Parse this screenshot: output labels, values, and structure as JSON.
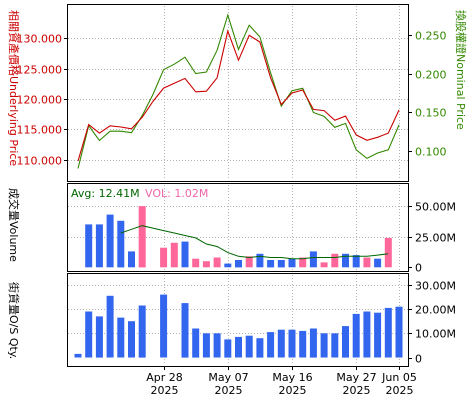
{
  "colors": {
    "underlying": "#cc0000",
    "nominal": "#338800",
    "volume_up": "#3366ee",
    "volume_down": "#ff6699",
    "avg_line": "#006600",
    "vol_label": "#ee66aa",
    "sq_bar": "#3366ee",
    "axis_text": "#000000"
  },
  "panels": {
    "price": {
      "left_label": "相關資產價格Underlying Price",
      "right_label": "換股權證Nominal Price"
    },
    "volume": {
      "left_label": "成交量Volume",
      "avg_text": "Avg: 12.41M",
      "vol_text": "VOL: 1.02M"
    },
    "sq": {
      "left_label": "街貨量O/S Qty."
    }
  },
  "chart_data": [
    {
      "type": "line",
      "panel": "price",
      "yaxis_left": {
        "ticks": [
          110,
          115,
          120,
          125,
          130
        ],
        "tick_labels": [
          "110.000",
          "115.000",
          "120.000",
          "125.000",
          "130.000"
        ],
        "ylim": [
          106.5,
          135.5
        ]
      },
      "yaxis_right": {
        "ticks": [
          0.1,
          0.15,
          0.2,
          0.25
        ],
        "tick_labels": [
          "0.100",
          "0.150",
          "0.200",
          "0.250"
        ],
        "ylim": [
          0.062,
          0.288
        ]
      },
      "x_ticks": [
        "Apr 28",
        "May 07",
        "May 16",
        "May 27",
        "Jun 05"
      ],
      "x_tick_years": [
        "2025",
        "2025",
        "2025",
        "2025",
        "2025"
      ],
      "series": [
        {
          "axis": "left",
          "values": [
            109.8,
            115.8,
            114.4,
            115.6,
            115.4,
            115.1,
            117.0,
            119.6,
            121.8,
            122.6,
            123.4,
            121.2,
            121.3,
            123.5,
            131.2,
            126.4,
            130.5,
            129.4,
            123.5,
            119.1,
            121.0,
            121.5,
            118.3,
            118.1,
            116.5,
            117.2,
            114.1,
            113.2,
            113.7,
            114.4,
            118.2
          ]
        },
        {
          "axis": "right",
          "values": [
            0.078,
            0.133,
            0.114,
            0.126,
            0.126,
            0.124,
            0.146,
            0.173,
            0.205,
            0.212,
            0.221,
            0.2,
            0.202,
            0.23,
            0.275,
            0.231,
            0.262,
            0.247,
            0.201,
            0.158,
            0.178,
            0.181,
            0.15,
            0.145,
            0.131,
            0.136,
            0.102,
            0.091,
            0.098,
            0.102,
            0.134
          ]
        }
      ]
    },
    {
      "type": "bar",
      "panel": "volume",
      "yaxis_right": {
        "ticks": [
          0,
          25,
          50
        ],
        "tick_labels": [
          "0",
          "25.00M",
          "50.00M"
        ],
        "ylim": [
          -3,
          68
        ]
      },
      "series": [
        {
          "name": "volume",
          "values": [
            0,
            35,
            35,
            43,
            38,
            13,
            50,
            0,
            16,
            20,
            21,
            7,
            5,
            8,
            3,
            6,
            9,
            11,
            6,
            6,
            7,
            8,
            13,
            4,
            11,
            11,
            10,
            8,
            7,
            24
          ],
          "direction": [
            "up",
            "up",
            "up",
            "up",
            "up",
            "up",
            "down",
            "up",
            "down",
            "down",
            "up",
            "down",
            "down",
            "down",
            "up",
            "up",
            "down",
            "up",
            "up",
            "up",
            "up",
            "down",
            "up",
            "down",
            "down",
            "up",
            "up",
            "down",
            "up",
            "down"
          ]
        },
        {
          "name": "average",
          "type": "line",
          "values": [
            null,
            null,
            null,
            null,
            28,
            31,
            34,
            32,
            30,
            28,
            26,
            24,
            19,
            17,
            12,
            9,
            8,
            9,
            8,
            8,
            7,
            7,
            8,
            8,
            8,
            9,
            9,
            9,
            10,
            11
          ]
        }
      ]
    },
    {
      "type": "bar",
      "panel": "sq",
      "yaxis_right": {
        "ticks": [
          0,
          10,
          20,
          30
        ],
        "tick_labels": [
          "0",
          "10.00M",
          "20.00M",
          "30.00M"
        ],
        "ylim": [
          -3.5,
          34.5
        ]
      },
      "values": [
        1.5,
        19,
        17,
        25.5,
        16.5,
        15,
        21.5,
        0,
        26,
        0,
        22.5,
        12,
        10,
        10,
        7.5,
        8.5,
        9,
        8,
        10.5,
        11.5,
        11.5,
        11,
        12,
        10,
        10,
        13,
        18,
        19,
        18.5,
        20.5,
        21
      ]
    }
  ]
}
